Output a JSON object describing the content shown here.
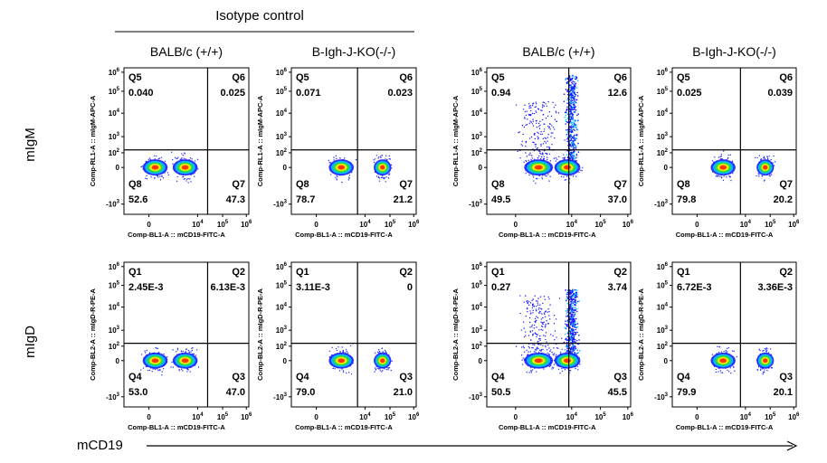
{
  "header": "Isotype control",
  "columns": [
    "BALB/c (+/+)",
    "B-Igh-J-KO(-/-)",
    "BALB/c (+/+)",
    "B-Igh-J-KO(-/-)"
  ],
  "row_labels": [
    "mIgM",
    "mIgD"
  ],
  "x_label": "mCD19",
  "y_ticks": [
    {
      "base": "10",
      "exp": "6"
    },
    {
      "base": "10",
      "exp": "5"
    },
    {
      "base": "10",
      "exp": "4"
    },
    {
      "base": "10",
      "exp": "3"
    },
    {
      "base": "10",
      "exp": "2"
    },
    {
      "base": "0",
      "exp": ""
    },
    {
      "base": "-10",
      "exp": "3"
    }
  ],
  "x_ticks": [
    {
      "base": "0",
      "exp": ""
    },
    {
      "base": "10",
      "exp": "4"
    },
    {
      "base": "10",
      "exp": "5"
    },
    {
      "base": "10",
      "exp": "6"
    }
  ],
  "panels": [
    [
      {
        "y_axis": "Comp-RL1-A :: mIgM-APC-A",
        "x_axis": "Comp-BL1-A :: mCD19-FITC-A",
        "quadrants": [
          {
            "name": "Q5",
            "value": "0.040"
          },
          {
            "name": "Q6",
            "value": "0.025"
          },
          {
            "name": "Q8",
            "value": "52.6"
          },
          {
            "name": "Q7",
            "value": "47.3"
          }
        ]
      },
      {
        "y_axis": "Comp-RL1-A :: mIgM-APC-A",
        "x_axis": "Comp-BL1-A :: mCD19-FITC-A",
        "quadrants": [
          {
            "name": "Q5",
            "value": "0.071"
          },
          {
            "name": "Q6",
            "value": "0.023"
          },
          {
            "name": "Q8",
            "value": "78.7"
          },
          {
            "name": "Q7",
            "value": "21.2"
          }
        ]
      },
      {
        "y_axis": "Comp-RL1-A :: mIgM-APC-A",
        "x_axis": "Comp-BL1-A :: mCD19-FITC-A",
        "quadrants": [
          {
            "name": "Q5",
            "value": "0.94"
          },
          {
            "name": "Q6",
            "value": "12.6"
          },
          {
            "name": "Q8",
            "value": "49.5"
          },
          {
            "name": "Q7",
            "value": "37.0"
          }
        ]
      },
      {
        "y_axis": "Comp-RL1-A :: mIgM-APC-A",
        "x_axis": "Comp-BL1-A :: mCD19-FITC-A",
        "quadrants": [
          {
            "name": "Q5",
            "value": "0.025"
          },
          {
            "name": "Q6",
            "value": "0.039"
          },
          {
            "name": "Q8",
            "value": "79.8"
          },
          {
            "name": "Q7",
            "value": "20.2"
          }
        ]
      }
    ],
    [
      {
        "y_axis": "Comp-BL2-A :: mIgD-R-PE-A",
        "x_axis": "Comp-BL1-A :: mCD19-FITC-A",
        "quadrants": [
          {
            "name": "Q1",
            "value": "2.45E-3"
          },
          {
            "name": "Q2",
            "value": "6.13E-3"
          },
          {
            "name": "Q4",
            "value": "53.0"
          },
          {
            "name": "Q3",
            "value": "47.0"
          }
        ]
      },
      {
        "y_axis": "Comp-BL2-A :: mIgD-R-PE-A",
        "x_axis": "Comp-BL1-A :: mCD19-FITC-A",
        "quadrants": [
          {
            "name": "Q1",
            "value": "3.11E-3"
          },
          {
            "name": "Q2",
            "value": "0"
          },
          {
            "name": "Q4",
            "value": "79.0"
          },
          {
            "name": "Q3",
            "value": "21.0"
          }
        ]
      },
      {
        "y_axis": "Comp-BL2-A :: mIgD-R-PE-A",
        "x_axis": "Comp-BL1-A :: mCD19-FITC-A",
        "quadrants": [
          {
            "name": "Q1",
            "value": "0.27"
          },
          {
            "name": "Q2",
            "value": "3.74"
          },
          {
            "name": "Q4",
            "value": "50.5"
          },
          {
            "name": "Q3",
            "value": "45.5"
          }
        ]
      },
      {
        "y_axis": "Comp-BL2-A :: mIgD-R-PE-A",
        "x_axis": "Comp-BL1-A :: mCD19-FITC-A",
        "quadrants": [
          {
            "name": "Q1",
            "value": "6.72E-3"
          },
          {
            "name": "Q2",
            "value": "3.36E-3"
          },
          {
            "name": "Q4",
            "value": "79.9"
          },
          {
            "name": "Q3",
            "value": "20.1"
          }
        ]
      }
    ]
  ]
}
